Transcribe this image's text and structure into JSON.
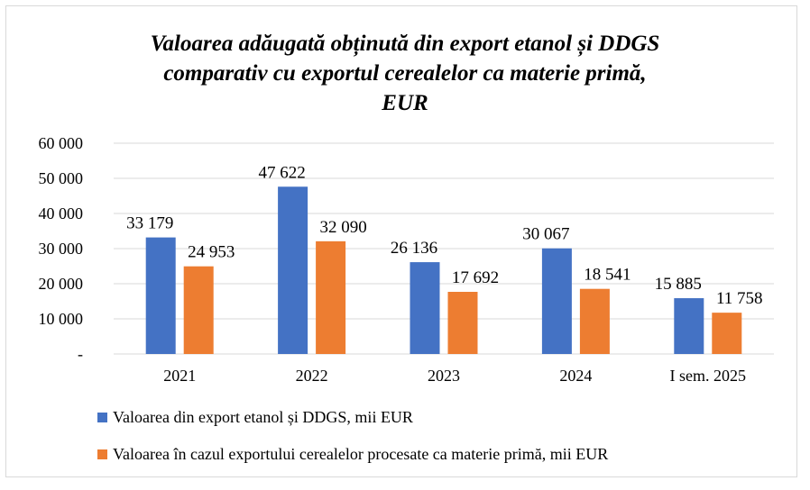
{
  "chart_data": {
    "type": "bar",
    "title_lines": [
      "Valoarea adăugată obținută din export etanol și DDGS",
      "comparativ cu exportul cerealelor  ca materie primă,",
      "EUR"
    ],
    "categories": [
      "2021",
      "2022",
      "2023",
      "2024",
      "I sem. 2025"
    ],
    "series": [
      {
        "name": "Valoarea  din export etanol și DDGS, mii EUR",
        "color": "#4472c4",
        "values": [
          33179,
          47622,
          26136,
          30067,
          15885
        ],
        "labels": [
          "33 179",
          "47 622",
          "26 136",
          "30 067",
          "15 885"
        ]
      },
      {
        "name": "Valoarea în cazul exportului cerealelor procesate ca materie primă, mii EUR",
        "color": "#ed7d31",
        "values": [
          24953,
          32090,
          17692,
          18541,
          11758
        ],
        "labels": [
          "24 953",
          "32 090",
          "17 692",
          "18 541",
          "11 758"
        ]
      }
    ],
    "ylim": [
      0,
      60000
    ],
    "y_ticks": [
      {
        "value": 0,
        "label": "-"
      },
      {
        "value": 10000,
        "label": "10 000"
      },
      {
        "value": 20000,
        "label": "20 000"
      },
      {
        "value": 30000,
        "label": "30 000"
      },
      {
        "value": 40000,
        "label": "40 000"
      },
      {
        "value": 50000,
        "label": "50 000"
      },
      {
        "value": 60000,
        "label": "60 000"
      }
    ],
    "grid": true,
    "legend_position": "bottom-left"
  }
}
